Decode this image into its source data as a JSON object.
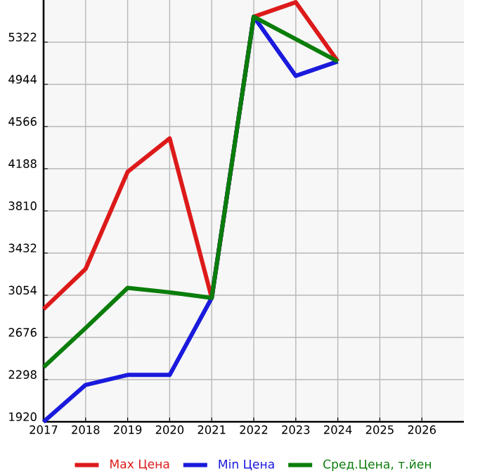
{
  "chart_data": {
    "type": "line",
    "x": [
      2017,
      2018,
      2019,
      2020,
      2021,
      2022,
      2023,
      2024
    ],
    "series": [
      {
        "name": "Max Цена",
        "color": "#dd1a1a",
        "values": [
          2930,
          3290,
          4160,
          4460,
          3030,
          5550,
          5680,
          5150
        ]
      },
      {
        "name": "Min Цена",
        "color": "#1a1add",
        "values": [
          1920,
          2250,
          2340,
          2340,
          3030,
          5550,
          5020,
          5150
        ]
      },
      {
        "name": "Сред.Цена, т.йен",
        "color": "#0a7d0a",
        "values": [
          2410,
          2760,
          3120,
          3080,
          3030,
          5550,
          5350,
          5150
        ]
      }
    ],
    "xlim": [
      2017,
      2027
    ],
    "xticks": [
      2017,
      2018,
      2019,
      2020,
      2021,
      2022,
      2023,
      2024,
      2025,
      2026
    ],
    "ylim": [
      1920,
      5700
    ],
    "yticks": [
      1920,
      2298,
      2676,
      3054,
      3432,
      3810,
      4188,
      4566,
      4944,
      5322
    ],
    "grid": true,
    "legend": "bottom",
    "marker": "none",
    "line_style": "solid"
  }
}
